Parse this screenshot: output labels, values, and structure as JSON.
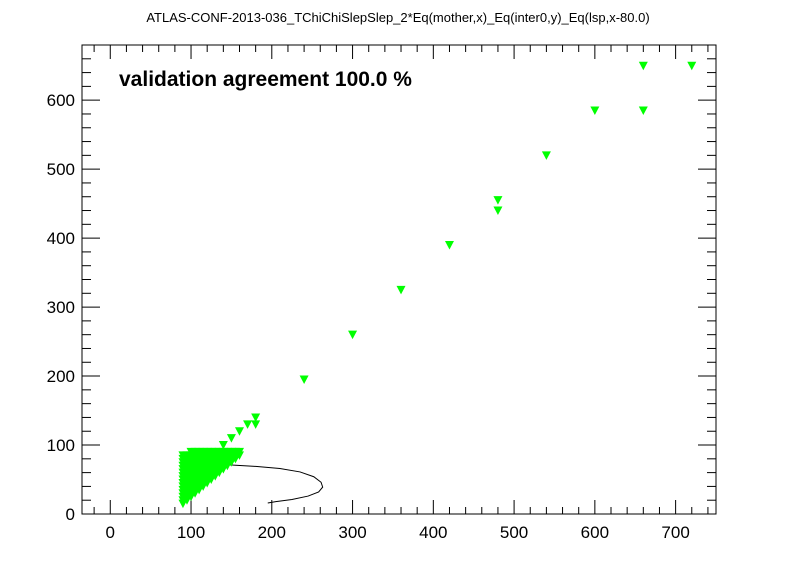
{
  "chart_data": {
    "type": "scatter",
    "title": "ATLAS-CONF-2013-036_TChiChiSlepSlep_2*Eq(mother,x)_Eq(inter0,y)_Eq(lsp,x-80.0)",
    "annotation": "validation agreement 100.0 %",
    "xlim": [
      -35,
      750
    ],
    "ylim": [
      0,
      680
    ],
    "x_ticks": [
      0,
      100,
      200,
      300,
      400,
      500,
      600,
      700
    ],
    "y_ticks": [
      0,
      100,
      200,
      300,
      400,
      500,
      600
    ],
    "marker": "triangle-down",
    "marker_color": "#00ff00",
    "curve_color": "#000000",
    "series": [
      {
        "points": [
          [
            90,
            15
          ],
          [
            90,
            20
          ],
          [
            90,
            25
          ],
          [
            90,
            30
          ],
          [
            90,
            35
          ],
          [
            90,
            40
          ],
          [
            90,
            45
          ],
          [
            90,
            50
          ],
          [
            90,
            55
          ],
          [
            90,
            60
          ],
          [
            90,
            65
          ],
          [
            90,
            70
          ],
          [
            90,
            75
          ],
          [
            90,
            80
          ],
          [
            90,
            85
          ],
          [
            95,
            20
          ],
          [
            95,
            25
          ],
          [
            95,
            30
          ],
          [
            95,
            35
          ],
          [
            95,
            40
          ],
          [
            95,
            45
          ],
          [
            95,
            50
          ],
          [
            95,
            55
          ],
          [
            95,
            60
          ],
          [
            95,
            65
          ],
          [
            95,
            70
          ],
          [
            95,
            75
          ],
          [
            95,
            80
          ],
          [
            95,
            85
          ],
          [
            100,
            25
          ],
          [
            100,
            30
          ],
          [
            100,
            35
          ],
          [
            100,
            40
          ],
          [
            100,
            45
          ],
          [
            100,
            50
          ],
          [
            100,
            55
          ],
          [
            100,
            60
          ],
          [
            100,
            65
          ],
          [
            100,
            70
          ],
          [
            100,
            75
          ],
          [
            100,
            80
          ],
          [
            100,
            85
          ],
          [
            100,
            90
          ],
          [
            105,
            30
          ],
          [
            105,
            35
          ],
          [
            105,
            40
          ],
          [
            105,
            45
          ],
          [
            105,
            50
          ],
          [
            105,
            55
          ],
          [
            105,
            60
          ],
          [
            105,
            65
          ],
          [
            105,
            70
          ],
          [
            105,
            75
          ],
          [
            105,
            80
          ],
          [
            105,
            85
          ],
          [
            105,
            90
          ],
          [
            110,
            35
          ],
          [
            110,
            40
          ],
          [
            110,
            45
          ],
          [
            110,
            50
          ],
          [
            110,
            55
          ],
          [
            110,
            60
          ],
          [
            110,
            65
          ],
          [
            110,
            70
          ],
          [
            110,
            75
          ],
          [
            110,
            80
          ],
          [
            110,
            85
          ],
          [
            110,
            90
          ],
          [
            115,
            40
          ],
          [
            115,
            45
          ],
          [
            115,
            50
          ],
          [
            115,
            55
          ],
          [
            115,
            60
          ],
          [
            115,
            65
          ],
          [
            115,
            70
          ],
          [
            115,
            75
          ],
          [
            115,
            80
          ],
          [
            115,
            85
          ],
          [
            115,
            90
          ],
          [
            120,
            45
          ],
          [
            120,
            50
          ],
          [
            120,
            55
          ],
          [
            120,
            60
          ],
          [
            120,
            65
          ],
          [
            120,
            70
          ],
          [
            120,
            75
          ],
          [
            120,
            80
          ],
          [
            120,
            85
          ],
          [
            120,
            90
          ],
          [
            125,
            50
          ],
          [
            125,
            55
          ],
          [
            125,
            60
          ],
          [
            125,
            65
          ],
          [
            125,
            70
          ],
          [
            125,
            75
          ],
          [
            125,
            80
          ],
          [
            125,
            85
          ],
          [
            125,
            90
          ],
          [
            130,
            55
          ],
          [
            130,
            60
          ],
          [
            130,
            65
          ],
          [
            130,
            70
          ],
          [
            130,
            75
          ],
          [
            130,
            80
          ],
          [
            130,
            85
          ],
          [
            130,
            90
          ],
          [
            135,
            60
          ],
          [
            135,
            65
          ],
          [
            135,
            70
          ],
          [
            135,
            75
          ],
          [
            135,
            80
          ],
          [
            135,
            85
          ],
          [
            135,
            90
          ],
          [
            140,
            65
          ],
          [
            140,
            70
          ],
          [
            140,
            75
          ],
          [
            140,
            80
          ],
          [
            140,
            85
          ],
          [
            140,
            90
          ],
          [
            140,
            100
          ],
          [
            145,
            70
          ],
          [
            145,
            75
          ],
          [
            145,
            80
          ],
          [
            145,
            85
          ],
          [
            145,
            90
          ],
          [
            150,
            75
          ],
          [
            150,
            80
          ],
          [
            150,
            85
          ],
          [
            150,
            90
          ],
          [
            150,
            110
          ],
          [
            155,
            80
          ],
          [
            155,
            85
          ],
          [
            155,
            90
          ],
          [
            160,
            85
          ],
          [
            160,
            90
          ],
          [
            160,
            120
          ],
          [
            170,
            130
          ],
          [
            180,
            130
          ],
          [
            180,
            140
          ],
          [
            240,
            195
          ],
          [
            300,
            260
          ],
          [
            360,
            325
          ],
          [
            420,
            390
          ],
          [
            480,
            440
          ],
          [
            480,
            455
          ],
          [
            540,
            520
          ],
          [
            600,
            585
          ],
          [
            660,
            585
          ],
          [
            660,
            650
          ],
          [
            720,
            650
          ]
        ]
      }
    ],
    "contour": [
      [
        120,
        72
      ],
      [
        150,
        71
      ],
      [
        180,
        69
      ],
      [
        210,
        66
      ],
      [
        235,
        61
      ],
      [
        252,
        54
      ],
      [
        261,
        46
      ],
      [
        263,
        39
      ],
      [
        258,
        32
      ],
      [
        245,
        26
      ],
      [
        225,
        21
      ],
      [
        205,
        18
      ],
      [
        195,
        16
      ]
    ]
  }
}
